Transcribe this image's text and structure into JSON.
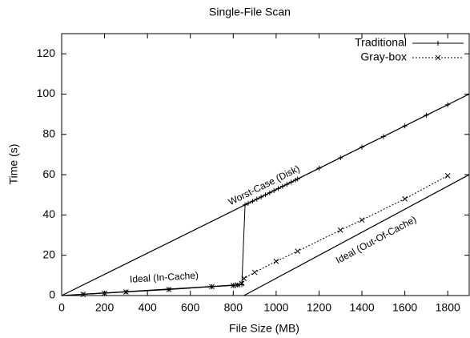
{
  "chart_data": {
    "type": "line",
    "title": "Single-File Scan",
    "xlabel": "File Size (MB)",
    "ylabel": "Time (s)",
    "xlim": [
      0,
      1900
    ],
    "ylim": [
      0,
      130
    ],
    "xticks": [
      0,
      200,
      400,
      600,
      800,
      1000,
      1200,
      1400,
      1600,
      1800
    ],
    "yticks": [
      0,
      20,
      40,
      60,
      80,
      100,
      120
    ],
    "legend": "top-right",
    "grid": false,
    "series": [
      {
        "name": "Traditional",
        "color": "#000000",
        "dash": "solid",
        "marker": "plus",
        "x": [
          100,
          200,
          300,
          500,
          700,
          800,
          820,
          840,
          855,
          870,
          890,
          910,
          930,
          950,
          970,
          990,
          1010,
          1030,
          1050,
          1070,
          1090,
          1100,
          1200,
          1300,
          1400,
          1500,
          1600,
          1700,
          1800
        ],
        "values": [
          0.6,
          1.2,
          1.8,
          3,
          4.4,
          5,
          5.2,
          5.4,
          45,
          45.8,
          46.8,
          47.9,
          48.9,
          50,
          51,
          52.1,
          53.1,
          54.2,
          55.2,
          56.3,
          57.3,
          57.9,
          63.2,
          68.4,
          73.7,
          78.9,
          84.2,
          89.5,
          94.7
        ]
      },
      {
        "name": "Gray-box",
        "color": "#000000",
        "dash": "dotted",
        "marker": "cross",
        "x": [
          100,
          200,
          300,
          500,
          700,
          800,
          820,
          840,
          850,
          900,
          1000,
          1100,
          1300,
          1400,
          1600,
          1800
        ],
        "values": [
          0.6,
          1.2,
          1.8,
          3,
          4.4,
          5,
          5.3,
          6,
          8.5,
          11.5,
          17,
          22,
          32.5,
          37.5,
          48,
          59.5
        ]
      }
    ],
    "reference_lines": [
      {
        "label": "Worst-Case (Disk)",
        "x": [
          0,
          1900
        ],
        "y": [
          0,
          100
        ]
      },
      {
        "label": "Ideal (In-Cache)",
        "x": [
          0,
          850
        ],
        "y": [
          0,
          5.5
        ]
      },
      {
        "label": "Ideal (Out-Of-Cache)",
        "x": [
          850,
          1900
        ],
        "y": [
          0,
          60
        ]
      }
    ]
  }
}
